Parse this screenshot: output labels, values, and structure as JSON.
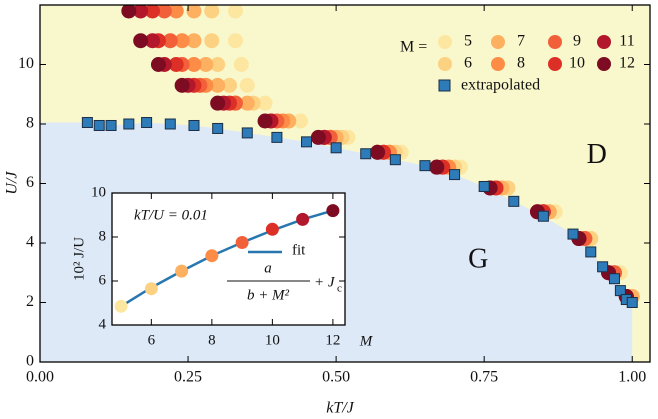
{
  "chart_data": [
    {
      "type": "scatter",
      "xlabel": "kT/J",
      "ylabel": "U/J",
      "xlim": [
        0,
        1.03
      ],
      "ylim": [
        0,
        12
      ],
      "xticks": [
        {
          "value": 0,
          "label": "0.00"
        },
        {
          "value": 0.25,
          "label": "0.25"
        },
        {
          "value": 0.5,
          "label": "0.50"
        },
        {
          "value": 0.75,
          "label": "0.75"
        },
        {
          "value": 1,
          "label": "1.00"
        }
      ],
      "yticks": [
        0,
        2,
        4,
        6,
        8,
        10
      ],
      "legend_title": "M =",
      "regions": [
        {
          "label": "D",
          "color": "#f9f7cc"
        },
        {
          "label": "G",
          "color": "#dde9f7"
        }
      ],
      "series": [
        {
          "name": "5",
          "color": "#fde7a0",
          "marker": "circle",
          "x": [
            0.33,
            0.33,
            0.34,
            0.35,
            0.38,
            0.44,
            0.52,
            0.61,
            0.71,
            0.79,
            0.87,
            0.93,
            0.98,
            1.0
          ],
          "values": [
            11.8,
            10.8,
            10.0,
            9.3,
            8.7,
            8.1,
            7.55,
            7.05,
            6.55,
            5.85,
            5.05,
            4.15,
            3.0,
            2.2
          ]
        },
        {
          "name": "6",
          "color": "#fdd182",
          "marker": "circle",
          "x": [
            0.29,
            0.29,
            0.3,
            0.32,
            0.36,
            0.42,
            0.51,
            0.6,
            0.7,
            0.79,
            0.86,
            0.93,
            0.97,
            1.0
          ],
          "values": [
            11.8,
            10.8,
            10.0,
            9.3,
            8.7,
            8.1,
            7.55,
            7.05,
            6.55,
            5.85,
            5.05,
            4.15,
            3.0,
            2.2
          ]
        },
        {
          "name": "7",
          "color": "#fdb060",
          "marker": "circle",
          "x": [
            0.26,
            0.26,
            0.28,
            0.3,
            0.35,
            0.42,
            0.5,
            0.59,
            0.69,
            0.78,
            0.86,
            0.92,
            0.97,
            1.0
          ],
          "values": [
            11.8,
            10.8,
            10.0,
            9.3,
            8.7,
            8.1,
            7.55,
            7.05,
            6.55,
            5.85,
            5.05,
            4.15,
            3.0,
            2.2
          ]
        },
        {
          "name": "8",
          "color": "#fc8c46",
          "marker": "circle",
          "x": [
            0.23,
            0.24,
            0.26,
            0.28,
            0.33,
            0.41,
            0.49,
            0.59,
            0.69,
            0.77,
            0.85,
            0.92,
            0.97,
            0.99
          ],
          "values": [
            11.8,
            10.8,
            10.0,
            9.3,
            8.7,
            8.1,
            7.55,
            7.05,
            6.55,
            5.85,
            5.05,
            4.15,
            3.0,
            2.2
          ]
        },
        {
          "name": "9",
          "color": "#f2603a",
          "marker": "circle",
          "x": [
            0.21,
            0.22,
            0.24,
            0.27,
            0.33,
            0.4,
            0.49,
            0.58,
            0.68,
            0.77,
            0.85,
            0.92,
            0.97,
            0.99
          ],
          "values": [
            11.8,
            10.8,
            10.0,
            9.3,
            8.7,
            8.1,
            7.55,
            7.05,
            6.55,
            5.85,
            5.05,
            4.15,
            3.0,
            2.2
          ]
        },
        {
          "name": "10",
          "color": "#dc3027",
          "marker": "circle",
          "x": [
            0.19,
            0.2,
            0.23,
            0.26,
            0.32,
            0.39,
            0.48,
            0.58,
            0.68,
            0.77,
            0.85,
            0.91,
            0.96,
            0.99
          ],
          "values": [
            11.8,
            10.8,
            10.0,
            9.3,
            8.7,
            8.1,
            7.55,
            7.05,
            6.55,
            5.85,
            5.05,
            4.15,
            3.0,
            2.2
          ]
        },
        {
          "name": "11",
          "color": "#b3172b",
          "marker": "circle",
          "x": [
            0.17,
            0.19,
            0.21,
            0.25,
            0.31,
            0.39,
            0.48,
            0.57,
            0.67,
            0.76,
            0.84,
            0.91,
            0.96,
            0.99
          ],
          "values": [
            11.8,
            10.8,
            10.0,
            9.3,
            8.7,
            8.1,
            7.55,
            7.05,
            6.55,
            5.85,
            5.05,
            4.15,
            3.0,
            2.2
          ]
        },
        {
          "name": "12",
          "color": "#7d0c22",
          "marker": "circle",
          "x": [
            0.15,
            0.17,
            0.2,
            0.24,
            0.3,
            0.38,
            0.47,
            0.57,
            0.67,
            0.76,
            0.84,
            0.91,
            0.96,
            0.99
          ],
          "values": [
            11.8,
            10.8,
            10.0,
            9.3,
            8.7,
            8.1,
            7.55,
            7.05,
            6.55,
            5.85,
            5.05,
            4.15,
            3.0,
            2.2
          ]
        },
        {
          "name": "extrapolated",
          "color": "#2d7bb8",
          "marker": "square",
          "x": [
            0.08,
            0.1,
            0.12,
            0.15,
            0.18,
            0.22,
            0.26,
            0.3,
            0.35,
            0.4,
            0.45,
            0.5,
            0.55,
            0.6,
            0.65,
            0.7,
            0.75,
            0.8,
            0.85,
            0.9,
            0.93,
            0.95,
            0.97,
            0.98,
            0.99,
            1.0
          ],
          "values": [
            8.05,
            7.95,
            7.95,
            8.0,
            8.05,
            8.0,
            7.95,
            7.85,
            7.7,
            7.55,
            7.4,
            7.2,
            7.0,
            6.8,
            6.6,
            6.3,
            5.9,
            5.4,
            4.9,
            4.3,
            3.7,
            3.2,
            2.8,
            2.4,
            2.1,
            2.0
          ]
        }
      ]
    },
    {
      "type": "scatter",
      "xlabel": "M",
      "ylabel": "10² J/U",
      "xlim": [
        4.7,
        12.4
      ],
      "ylim": [
        4,
        10
      ],
      "xticks": [
        6,
        8,
        10,
        12
      ],
      "yticks": [
        4,
        6,
        8,
        10
      ],
      "annotation": "kT/U = 0.01",
      "formula": {
        "numerator": "a",
        "denominator": "b + M²",
        "tail": "+ J",
        "tail_sub": "c"
      },
      "series": [
        {
          "type": "points",
          "x": [
            5,
            6,
            7,
            8,
            9,
            10,
            11,
            12
          ],
          "values": [
            4.85,
            5.65,
            6.45,
            7.15,
            7.75,
            8.35,
            8.8,
            9.2
          ],
          "colors": [
            "#fde7a0",
            "#fdd182",
            "#fdb060",
            "#fc8c46",
            "#f2603a",
            "#dc3027",
            "#b3172b",
            "#7d0c22"
          ]
        },
        {
          "type": "line",
          "name": "fit",
          "color": "#2877b0",
          "x": [
            5,
            6,
            7,
            8,
            9,
            10,
            11,
            12
          ],
          "values": [
            4.85,
            5.7,
            6.45,
            7.15,
            7.75,
            8.3,
            8.8,
            9.2
          ]
        }
      ]
    }
  ]
}
